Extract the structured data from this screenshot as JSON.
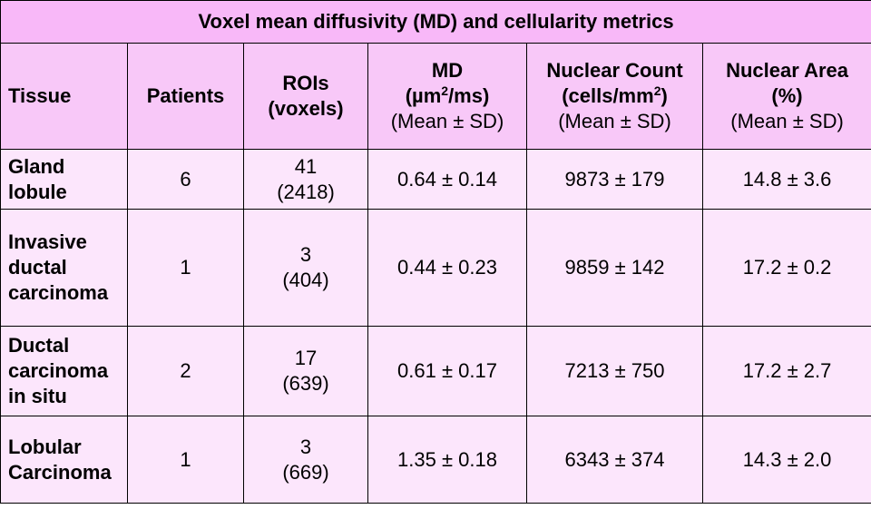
{
  "table": {
    "title": "Voxel mean diffusivity (MD) and cellularity metrics",
    "headers": {
      "tissue": "Tissue",
      "patients": "Patients",
      "rois_line1": "ROIs",
      "rois_line2": "(voxels)",
      "md_line1": "MD",
      "md_line2_pre": "(µm",
      "md_line2_sup": "2",
      "md_line2_post": "/ms)",
      "md_line3": "(Mean ± SD)",
      "count_line1": "Nuclear Count",
      "count_line2_pre": "(cells/mm",
      "count_line2_sup": "2",
      "count_line2_post": ")",
      "count_line3": "(Mean ± SD)",
      "area_line1": "Nuclear Area",
      "area_line2": "(%)",
      "area_line3": "(Mean ± SD)"
    },
    "rows": [
      {
        "tissue_lines": [
          "Gland",
          "lobule"
        ],
        "patients": "6",
        "rois": "41",
        "voxels": "(2418)",
        "md": "0.64 ± 0.14",
        "nuclear_count": "9873 ± 179",
        "nuclear_area": "14.8 ± 3.6"
      },
      {
        "tissue_lines": [
          "Invasive",
          "ductal",
          "carcinoma"
        ],
        "patients": "1",
        "rois": "3",
        "voxels": "(404)",
        "md": "0.44 ± 0.23",
        "nuclear_count": "9859 ± 142",
        "nuclear_area": "17.2 ± 0.2"
      },
      {
        "tissue_lines": [
          "Ductal",
          "carcinoma",
          "in situ"
        ],
        "patients": "2",
        "rois": "17",
        "voxels": "(639)",
        "md": "0.61 ± 0.17",
        "nuclear_count": "7213 ± 750",
        "nuclear_area": "17.2 ± 2.7"
      },
      {
        "tissue_lines": [
          "Lobular",
          "Carcinoma"
        ],
        "patients": "1",
        "rois": "3",
        "voxels": "(669)",
        "md": "1.35 ± 0.18",
        "nuclear_count": "6343 ± 374",
        "nuclear_area": "14.3 ± 2.0"
      }
    ]
  },
  "colors": {
    "title_bg": "#f8b8f8",
    "header_bg": "#f8c8f8",
    "body_bg": "#fce6fc",
    "border": "#000000"
  }
}
